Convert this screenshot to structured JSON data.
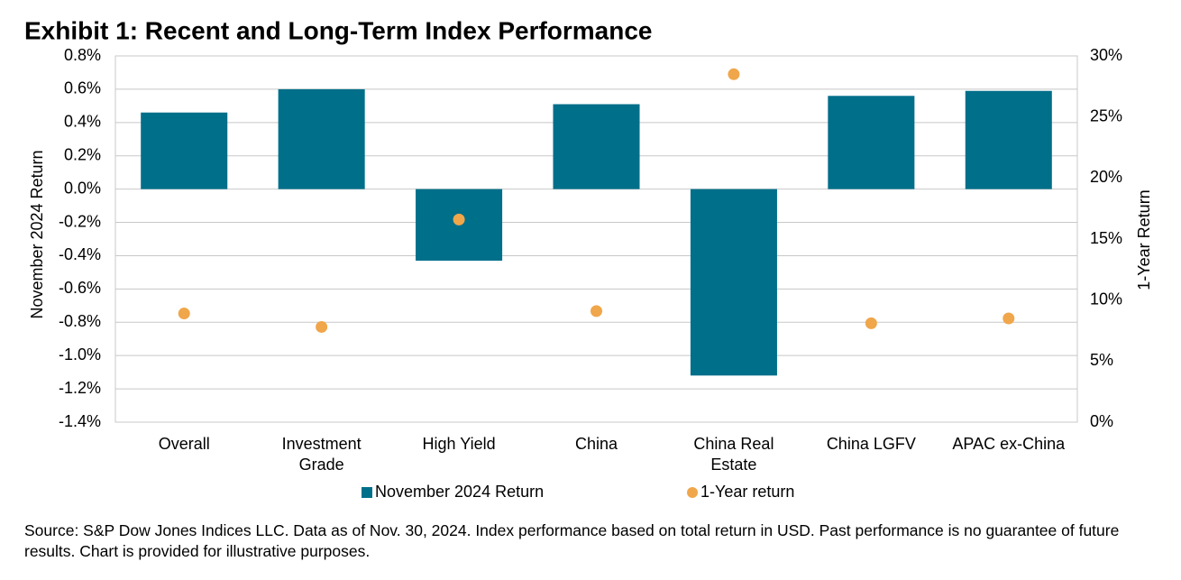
{
  "chart_data": {
    "type": "bar",
    "title": "Exhibit 1: Recent and Long-Term Index Performance",
    "y_label": "November 2024 Return",
    "y2_label": "1-Year Return",
    "categories": [
      "Overall",
      "Investment Grade",
      "High Yield",
      "China",
      "China Real Estate",
      "China LGFV",
      "APAC ex-China"
    ],
    "series": [
      {
        "name": "November 2024 Return",
        "type": "bar",
        "color": "#006f8a",
        "values": [
          0.46,
          0.6,
          -0.43,
          0.51,
          -1.12,
          0.56,
          0.59
        ]
      },
      {
        "name": "1-Year return",
        "type": "scatter",
        "axis": "y2",
        "color": "#f0a64a",
        "values": [
          8.9,
          7.8,
          16.6,
          9.1,
          28.5,
          8.1,
          8.5
        ]
      }
    ],
    "ylim": [
      -1.4,
      0.8
    ],
    "yticks": [
      {
        "value": -1.4,
        "label": "-1.4%"
      },
      {
        "value": -1.2,
        "label": "-1.2%"
      },
      {
        "value": -1.0,
        "label": "-1.0%"
      },
      {
        "value": -0.8,
        "label": "-0.8%"
      },
      {
        "value": -0.6,
        "label": "-0.6%"
      },
      {
        "value": -0.4,
        "label": "-0.4%"
      },
      {
        "value": -0.2,
        "label": "-0.2%"
      },
      {
        "value": 0.0,
        "label": "0.0%"
      },
      {
        "value": 0.2,
        "label": "0.2%"
      },
      {
        "value": 0.4,
        "label": "0.4%"
      },
      {
        "value": 0.6,
        "label": "0.6%"
      },
      {
        "value": 0.8,
        "label": "0.8%"
      }
    ],
    "y2lim": [
      0,
      30
    ],
    "y2ticks": [
      {
        "value": 0,
        "label": "0%"
      },
      {
        "value": 5,
        "label": "5%"
      },
      {
        "value": 10,
        "label": "10%"
      },
      {
        "value": 15,
        "label": "15%"
      },
      {
        "value": 20,
        "label": "20%"
      },
      {
        "value": 25,
        "label": "25%"
      },
      {
        "value": 30,
        "label": "30%"
      }
    ],
    "grid": true,
    "legend": "bottom",
    "source": "Source: S&P Dow Jones Indices LLC.  Data as of Nov. 30, 2024.  Index performance based on total return in USD.  Past performance is no guarantee of future results.  Chart is provided for illustrative purposes."
  }
}
